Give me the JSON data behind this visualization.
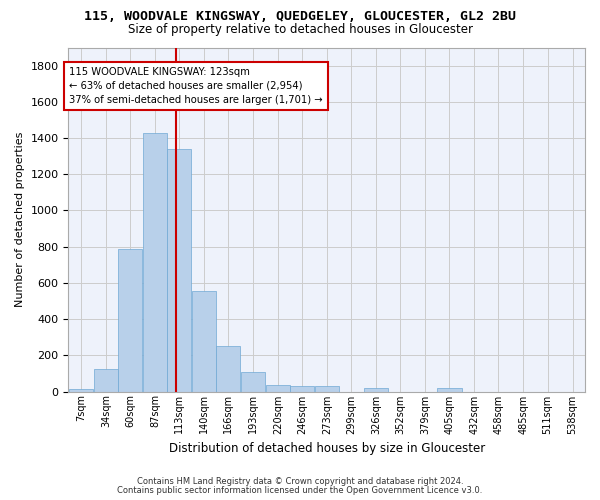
{
  "title": "115, WOODVALE KINGSWAY, QUEDGELEY, GLOUCESTER, GL2 2BU",
  "subtitle": "Size of property relative to detached houses in Gloucester",
  "xlabel": "Distribution of detached houses by size in Gloucester",
  "ylabel": "Number of detached properties",
  "footer_line1": "Contains HM Land Registry data © Crown copyright and database right 2024.",
  "footer_line2": "Contains public sector information licensed under the Open Government Licence v3.0.",
  "bin_labels": [
    "7sqm",
    "34sqm",
    "60sqm",
    "87sqm",
    "113sqm",
    "140sqm",
    "166sqm",
    "193sqm",
    "220sqm",
    "246sqm",
    "273sqm",
    "299sqm",
    "326sqm",
    "352sqm",
    "379sqm",
    "405sqm",
    "432sqm",
    "458sqm",
    "485sqm",
    "511sqm",
    "538sqm"
  ],
  "bar_values": [
    15,
    125,
    785,
    1430,
    1340,
    555,
    250,
    110,
    35,
    30,
    30,
    0,
    20,
    0,
    0,
    20,
    0,
    0,
    0,
    0,
    0
  ],
  "bar_color": "#b8d0ea",
  "bar_edge_color": "#6fa8d4",
  "ylim": [
    0,
    1900
  ],
  "yticks": [
    0,
    200,
    400,
    600,
    800,
    1000,
    1200,
    1400,
    1600,
    1800
  ],
  "vline_x_index": 4,
  "bin_edges": [
    7,
    34,
    60,
    87,
    113,
    140,
    166,
    193,
    220,
    246,
    273,
    299,
    326,
    352,
    379,
    405,
    432,
    458,
    485,
    511,
    538
  ],
  "bin_width": 27,
  "annotation_text": "115 WOODVALE KINGSWAY: 123sqm\n← 63% of detached houses are smaller (2,954)\n37% of semi-detached houses are larger (1,701) →",
  "annotation_box_facecolor": "#ffffff",
  "annotation_box_edgecolor": "#cc0000",
  "vline_color": "#cc0000",
  "grid_color": "#cccccc",
  "background_color": "#eef2fb",
  "property_size": 123
}
